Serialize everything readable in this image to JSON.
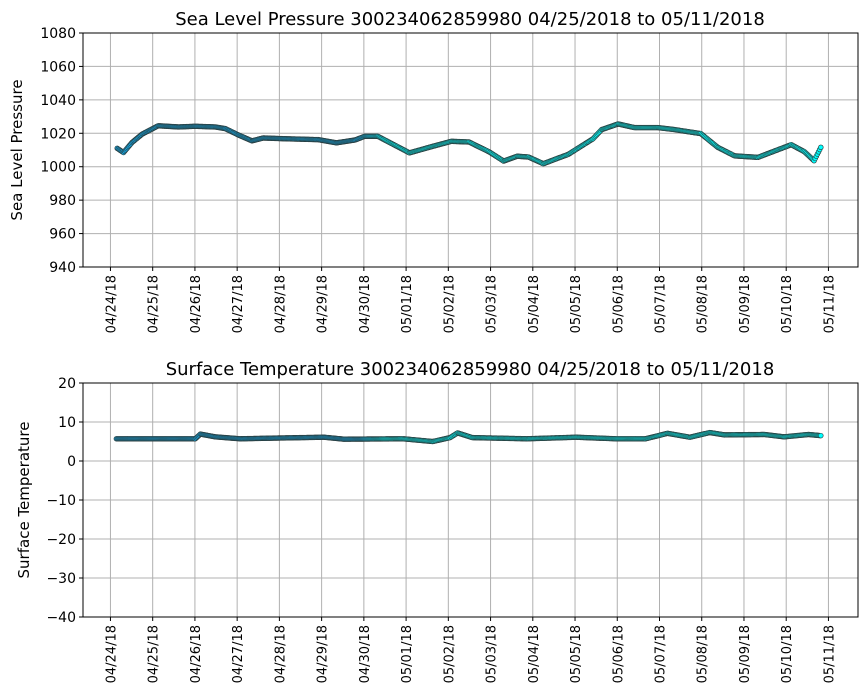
{
  "chart_data": [
    {
      "type": "scatter",
      "title": "Sea Level Pressure 300234062859980  04/25/2018 to 05/11/2018",
      "xlabel": "",
      "ylabel": "Sea Level Pressure",
      "ylim": [
        940,
        1080
      ],
      "yticks": [
        940,
        960,
        980,
        1000,
        1020,
        1040,
        1060,
        1080
      ],
      "x_unit": "days since 04/24/18 00:00",
      "xlim": [
        -0.65,
        17.7
      ],
      "xtick_labels": [
        "04/24/18",
        "04/25/18",
        "04/26/18",
        "04/27/18",
        "04/28/18",
        "04/29/18",
        "04/30/18",
        "05/01/18",
        "05/02/18",
        "05/03/18",
        "05/04/18",
        "05/05/18",
        "05/06/18",
        "05/07/18",
        "05/08/18",
        "05/09/18",
        "05/10/18",
        "05/11/18"
      ],
      "grid": true,
      "x": [
        0.16,
        0.31,
        0.51,
        0.75,
        1.13,
        1.61,
        2.0,
        2.48,
        2.72,
        3.03,
        3.35,
        3.62,
        4.06,
        4.92,
        5.35,
        5.79,
        6.02,
        6.33,
        7.08,
        7.6,
        8.07,
        8.49,
        8.96,
        9.31,
        9.63,
        9.9,
        10.25,
        10.53,
        10.84,
        11.43,
        11.63,
        12.02,
        12.41,
        12.96,
        13.36,
        13.98,
        14.38,
        14.78,
        15.33,
        15.64,
        16.12,
        16.43,
        16.66,
        16.82
      ],
      "y": [
        1011,
        1008.5,
        1014.5,
        1019.5,
        1024.5,
        1023.8,
        1024.2,
        1023.8,
        1022.8,
        1019,
        1015.5,
        1017.2,
        1016.8,
        1016.2,
        1014.3,
        1016,
        1018.2,
        1018.2,
        1008.3,
        1012,
        1015.2,
        1014.8,
        1009,
        1003.4,
        1006.3,
        1005.8,
        1001.8,
        1004.5,
        1007.4,
        1016.8,
        1022.2,
        1025.6,
        1023.4,
        1023.4,
        1022.2,
        1019.8,
        1011.6,
        1006.5,
        1005.6,
        1008.6,
        1013.2,
        1009,
        1003.6,
        1011.6
      ]
    },
    {
      "type": "scatter",
      "title": "Surface Temperature 300234062859980  04/25/2018 to 05/11/2018",
      "xlabel": "",
      "ylabel": "Surface Temperature",
      "ylim": [
        -40,
        20
      ],
      "yticks": [
        -40,
        -30,
        -20,
        -10,
        0,
        10,
        20
      ],
      "x_unit": "days since 04/24/18 00:00",
      "xlim": [
        -0.65,
        17.7
      ],
      "xtick_labels": [
        "04/24/18",
        "04/25/18",
        "04/26/18",
        "04/27/18",
        "04/28/18",
        "04/29/18",
        "04/30/18",
        "05/01/18",
        "05/02/18",
        "05/03/18",
        "05/04/18",
        "05/05/18",
        "05/06/18",
        "05/07/18",
        "05/08/18",
        "05/09/18",
        "05/10/18",
        "05/11/18"
      ],
      "grid": true,
      "x": [
        0.14,
        2.01,
        2.13,
        2.48,
        3.07,
        4.0,
        5.06,
        5.53,
        6.93,
        7.63,
        8.04,
        8.22,
        8.57,
        9.86,
        11.03,
        11.97,
        12.67,
        13.19,
        13.72,
        14.19,
        14.54,
        15.48,
        15.95,
        16.53,
        16.82
      ],
      "y": [
        5.7,
        5.7,
        6.9,
        6.2,
        5.7,
        5.9,
        6.1,
        5.6,
        5.7,
        5.0,
        6.0,
        7.2,
        6.0,
        5.7,
        6.1,
        5.7,
        5.7,
        7.1,
        6.1,
        7.3,
        6.7,
        6.8,
        6.2,
        6.8,
        6.5
      ]
    }
  ],
  "colors": {
    "early_marker": "#12a6e4",
    "late_marker": "#00ffff",
    "marker_edge": "#2a3a3a",
    "color_transition_day": 6.2
  }
}
